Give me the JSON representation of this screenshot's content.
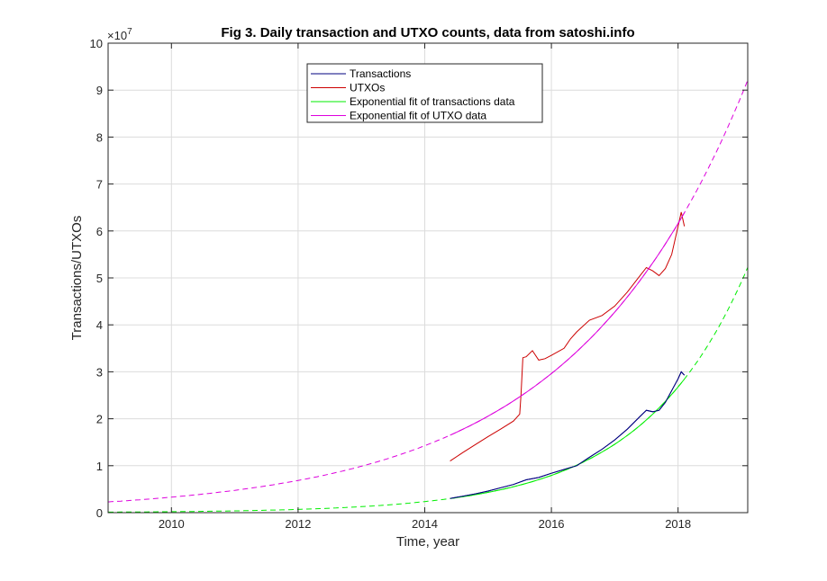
{
  "chart_data": {
    "type": "line",
    "title": "Fig 3. Daily transaction and UTXO counts, data from satoshi.info",
    "xlabel": "Time, year",
    "ylabel": "Transactions/UTXOs",
    "y_exponent_label": "×10",
    "y_exponent_power": "7",
    "xlim": [
      2009.0,
      2019.1
    ],
    "ylim": [
      0,
      100000000
    ],
    "x_ticks": [
      2010,
      2012,
      2014,
      2016,
      2018
    ],
    "x_tick_labels": [
      "2010",
      "2012",
      "2014",
      "2016",
      "2018"
    ],
    "y_ticks": [
      0,
      10000000,
      20000000,
      30000000,
      40000000,
      50000000,
      60000000,
      70000000,
      80000000,
      90000000,
      100000000
    ],
    "y_tick_labels": [
      "0",
      "1",
      "2",
      "3",
      "4",
      "5",
      "6",
      "7",
      "8",
      "9",
      "10"
    ],
    "grid": true,
    "legend_position": "top-center",
    "series": [
      {
        "name": "Transactions",
        "color": "#00007f",
        "style": "solid",
        "x": [
          2014.4,
          2014.6,
          2014.8,
          2015.0,
          2015.2,
          2015.4,
          2015.6,
          2015.8,
          2016.0,
          2016.2,
          2016.4,
          2016.6,
          2016.8,
          2017.0,
          2017.2,
          2017.4,
          2017.5,
          2017.6,
          2017.7,
          2017.8,
          2017.9,
          2018.0,
          2018.05,
          2018.1
        ],
        "y": [
          3000000,
          3500000,
          4000000,
          4600000,
          5300000,
          6000000,
          7000000,
          7500000,
          8400000,
          9200000,
          10000000,
          11800000,
          13500000,
          15500000,
          17800000,
          20500000,
          21800000,
          21500000,
          21800000,
          23500000,
          26000000,
          28500000,
          30000000,
          29300000
        ]
      },
      {
        "name": "UTXOs",
        "color": "#cc0000",
        "style": "solid",
        "x": [
          2014.4,
          2014.6,
          2014.8,
          2015.0,
          2015.2,
          2015.4,
          2015.5,
          2015.52,
          2015.55,
          2015.6,
          2015.7,
          2015.8,
          2015.9,
          2016.0,
          2016.2,
          2016.3,
          2016.4,
          2016.6,
          2016.8,
          2017.0,
          2017.2,
          2017.4,
          2017.5,
          2017.6,
          2017.7,
          2017.8,
          2017.9,
          2018.0,
          2018.05,
          2018.1
        ],
        "y": [
          11000000,
          12800000,
          14500000,
          16200000,
          17800000,
          19500000,
          21000000,
          25000000,
          33000000,
          33200000,
          34500000,
          32500000,
          32800000,
          33500000,
          35000000,
          37000000,
          38500000,
          41000000,
          42000000,
          44000000,
          47000000,
          50500000,
          52200000,
          51500000,
          50500000,
          52000000,
          55000000,
          61000000,
          64000000,
          61000000
        ]
      },
      {
        "name": "Exponential fit of transactions data",
        "color": "#00ee00",
        "style": "dashed",
        "fit": {
          "a": 3000000,
          "b": 0.608,
          "x0": 2014.4
        },
        "x_range": [
          2009.0,
          2019.1
        ],
        "solid_range": [
          2014.4,
          2018.1
        ]
      },
      {
        "name": "Exponential fit of UTXO data",
        "color": "#dd00dd",
        "style": "dashed",
        "fit": {
          "a": 16500000,
          "b": 0.3659,
          "x0": 2014.4
        },
        "x_range": [
          2009.0,
          2019.1
        ],
        "solid_range": [
          2014.4,
          2018.1
        ]
      }
    ]
  }
}
